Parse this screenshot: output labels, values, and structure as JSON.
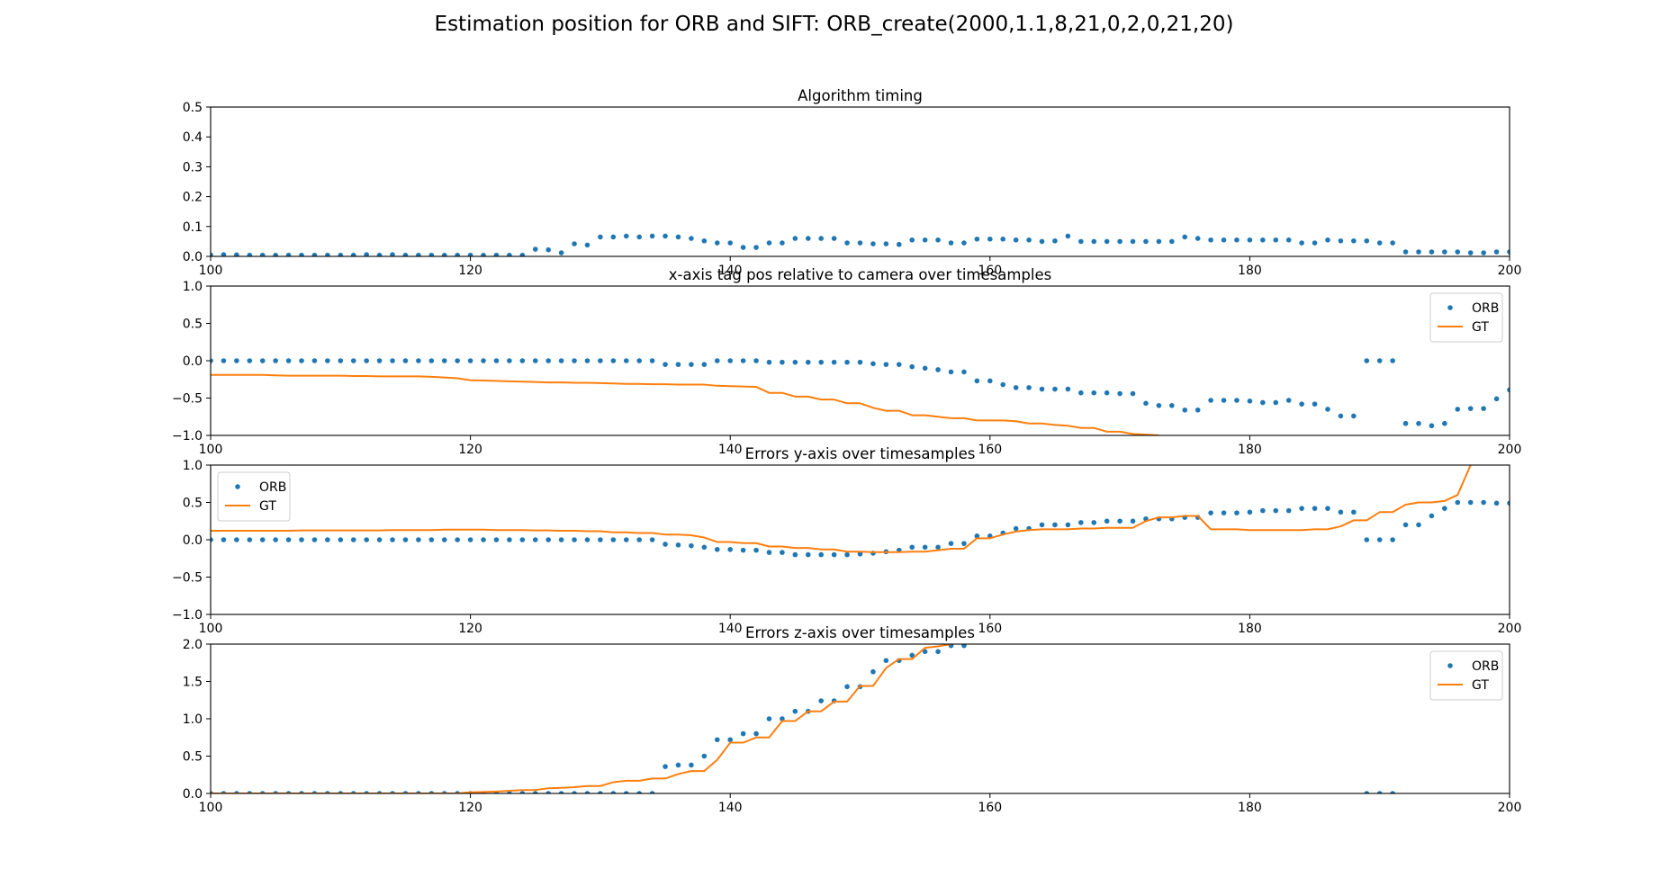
{
  "figure": {
    "suptitle": "Estimation position for ORB and SIFT: ORB_create(2000,1.1,8,21,0,2,0,21,20)"
  },
  "colors": {
    "orb": "#1f77b4",
    "gt": "#ff7f0e"
  },
  "chart_data": [
    {
      "type": "scatter",
      "title": "Algorithm timing",
      "xlim": [
        100,
        200
      ],
      "ylim": [
        0,
        0.5
      ],
      "xticks": [
        "100",
        "120",
        "140",
        "160",
        "180",
        "200"
      ],
      "yticks": [
        "0.0",
        "0.1",
        "0.2",
        "0.3",
        "0.4",
        "0.5"
      ],
      "legend": null,
      "x_start": 100,
      "series": [
        {
          "kind": "points",
          "values": [
            0.005,
            0.006,
            0.005,
            0.004,
            0.004,
            0.004,
            0.004,
            0.004,
            0.004,
            0.004,
            0.004,
            0.004,
            0.006,
            0.004,
            0.006,
            0.004,
            0.004,
            0.004,
            0.004,
            0.004,
            0.004,
            0.004,
            0.004,
            0.004,
            0.004,
            0.024,
            0.022,
            0.012,
            0.042,
            0.038,
            0.065,
            0.065,
            0.068,
            0.065,
            0.068,
            0.068,
            0.065,
            0.06,
            0.052,
            0.045,
            0.045,
            0.03,
            0.03,
            0.045,
            0.045,
            0.06,
            0.06,
            0.06,
            0.06,
            0.045,
            0.045,
            0.042,
            0.042,
            0.04,
            0.055,
            0.055,
            0.055,
            0.045,
            0.045,
            0.058,
            0.058,
            0.058,
            0.055,
            0.055,
            0.05,
            0.052,
            0.068,
            0.05,
            0.05,
            0.05,
            0.05,
            0.05,
            0.05,
            0.05,
            0.05,
            0.065,
            0.06,
            0.055,
            0.055,
            0.055,
            0.055,
            0.055,
            0.055,
            0.055,
            0.045,
            0.045,
            0.055,
            0.052,
            0.052,
            0.052,
            0.045,
            0.045,
            0.015,
            0.015,
            0.015,
            0.015,
            0.015,
            0.012,
            0.012,
            0.015,
            0.015
          ]
        }
      ]
    },
    {
      "type": "line",
      "title": "x-axis tag pos relative to camera over timesamples",
      "xlim": [
        100,
        200
      ],
      "ylim": [
        -1,
        1
      ],
      "xticks": [
        "100",
        "120",
        "140",
        "160",
        "180",
        "200"
      ],
      "yticks": [
        "−1.0",
        "−0.5",
        "0.0",
        "0.5",
        "1.0"
      ],
      "legend": "upper right",
      "x_start": 100,
      "series": [
        {
          "name": "ORB",
          "kind": "points",
          "values": [
            0,
            0,
            0,
            0,
            0,
            0,
            0,
            0,
            0,
            0,
            0,
            0,
            0,
            0,
            0,
            0,
            0,
            0,
            0,
            0,
            0,
            0,
            0,
            0,
            0,
            0,
            0,
            0,
            0,
            0,
            0,
            0,
            0,
            0,
            0,
            -0.05,
            -0.05,
            -0.05,
            -0.05,
            0,
            0,
            0,
            0,
            -0.02,
            -0.02,
            -0.02,
            -0.02,
            -0.02,
            -0.02,
            -0.02,
            -0.02,
            -0.04,
            -0.05,
            -0.05,
            -0.08,
            -0.1,
            -0.12,
            -0.15,
            -0.15,
            -0.27,
            -0.27,
            -0.32,
            -0.36,
            -0.36,
            -0.38,
            -0.38,
            -0.38,
            -0.43,
            -0.43,
            -0.43,
            -0.44,
            -0.44,
            -0.57,
            -0.6,
            -0.6,
            -0.66,
            -0.66,
            -0.53,
            -0.53,
            -0.53,
            -0.54,
            -0.56,
            -0.56,
            -0.53,
            -0.58,
            -0.58,
            -0.65,
            -0.74,
            -0.74,
            0,
            0,
            0,
            -0.84,
            -0.84,
            -0.87,
            -0.84,
            -0.65,
            -0.64,
            -0.64,
            -0.51,
            -0.39
          ]
        },
        {
          "name": "GT",
          "kind": "line",
          "values": [
            -0.19,
            -0.19,
            -0.19,
            -0.19,
            -0.19,
            -0.195,
            -0.2,
            -0.2,
            -0.2,
            -0.2,
            -0.2,
            -0.205,
            -0.205,
            -0.21,
            -0.21,
            -0.21,
            -0.21,
            -0.215,
            -0.225,
            -0.235,
            -0.26,
            -0.265,
            -0.27,
            -0.275,
            -0.28,
            -0.285,
            -0.29,
            -0.29,
            -0.295,
            -0.295,
            -0.3,
            -0.305,
            -0.31,
            -0.31,
            -0.315,
            -0.315,
            -0.32,
            -0.32,
            -0.32,
            -0.335,
            -0.34,
            -0.345,
            -0.35,
            -0.43,
            -0.43,
            -0.48,
            -0.48,
            -0.52,
            -0.52,
            -0.57,
            -0.57,
            -0.63,
            -0.67,
            -0.67,
            -0.73,
            -0.73,
            -0.75,
            -0.77,
            -0.77,
            -0.8,
            -0.8,
            -0.8,
            -0.81,
            -0.84,
            -0.84,
            -0.86,
            -0.87,
            -0.9,
            -0.9,
            -0.95,
            -0.95,
            -0.98,
            -0.99,
            -1.0
          ]
        }
      ]
    },
    {
      "type": "line",
      "title": "Errors y-axis over timesamples",
      "xlim": [
        100,
        200
      ],
      "ylim": [
        -1,
        1
      ],
      "xticks": [
        "100",
        "120",
        "140",
        "160",
        "180",
        "200"
      ],
      "yticks": [
        "−1.0",
        "−0.5",
        "0.0",
        "0.5",
        "1.0"
      ],
      "legend": "upper left",
      "x_start": 100,
      "series": [
        {
          "name": "ORB",
          "kind": "points",
          "values": [
            0,
            0,
            0,
            0,
            0,
            0,
            0,
            0,
            0,
            0,
            0,
            0,
            0,
            0,
            0,
            0,
            0,
            0,
            0,
            0,
            0,
            0,
            0,
            0,
            0,
            0,
            0,
            0,
            0,
            0,
            0,
            0,
            0,
            0,
            0,
            -0.06,
            -0.07,
            -0.08,
            -0.1,
            -0.13,
            -0.13,
            -0.14,
            -0.14,
            -0.17,
            -0.17,
            -0.2,
            -0.2,
            -0.2,
            -0.2,
            -0.2,
            -0.19,
            -0.18,
            -0.16,
            -0.14,
            -0.1,
            -0.1,
            -0.1,
            -0.05,
            -0.05,
            0.05,
            0.05,
            0.09,
            0.15,
            0.15,
            0.2,
            0.2,
            0.2,
            0.23,
            0.23,
            0.25,
            0.25,
            0.25,
            0.28,
            0.28,
            0.28,
            0.3,
            0.3,
            0.36,
            0.36,
            0.36,
            0.37,
            0.39,
            0.39,
            0.39,
            0.42,
            0.42,
            0.42,
            0.37,
            0.37,
            0,
            0,
            0,
            0.2,
            0.2,
            0.32,
            0.42,
            0.5,
            0.5,
            0.5,
            0.49,
            0.49
          ]
        },
        {
          "name": "GT",
          "kind": "line",
          "values": [
            0.12,
            0.12,
            0.12,
            0.12,
            0.12,
            0.12,
            0.12,
            0.125,
            0.125,
            0.125,
            0.125,
            0.125,
            0.125,
            0.125,
            0.13,
            0.13,
            0.13,
            0.13,
            0.135,
            0.135,
            0.135,
            0.135,
            0.13,
            0.13,
            0.13,
            0.125,
            0.125,
            0.12,
            0.12,
            0.115,
            0.115,
            0.1,
            0.1,
            0.09,
            0.09,
            0.07,
            0.07,
            0.06,
            0.03,
            -0.03,
            -0.03,
            -0.045,
            -0.045,
            -0.09,
            -0.09,
            -0.11,
            -0.11,
            -0.13,
            -0.13,
            -0.16,
            -0.16,
            -0.165,
            -0.165,
            -0.165,
            -0.16,
            -0.16,
            -0.14,
            -0.12,
            -0.12,
            0.02,
            0.02,
            0.07,
            0.11,
            0.13,
            0.14,
            0.14,
            0.14,
            0.15,
            0.15,
            0.16,
            0.16,
            0.16,
            0.25,
            0.3,
            0.3,
            0.32,
            0.32,
            0.14,
            0.14,
            0.14,
            0.13,
            0.13,
            0.13,
            0.13,
            0.13,
            0.14,
            0.14,
            0.18,
            0.26,
            0.26,
            0.37,
            0.37,
            0.47,
            0.5,
            0.5,
            0.52,
            0.6,
            1.0
          ]
        }
      ]
    },
    {
      "type": "line",
      "title": "Errors z-axis over timesamples",
      "xlim": [
        100,
        200
      ],
      "ylim": [
        0,
        2
      ],
      "xticks": [
        "100",
        "120",
        "140",
        "160",
        "180",
        "200"
      ],
      "yticks": [
        "0.0",
        "0.5",
        "1.0",
        "1.5",
        "2.0"
      ],
      "legend": "upper right",
      "x_start": 100,
      "series": [
        {
          "name": "ORB",
          "kind": "points",
          "values": [
            0,
            0,
            0,
            0,
            0,
            0,
            0,
            0,
            0,
            0,
            0,
            0,
            0,
            0,
            0,
            0,
            0,
            0,
            0,
            0,
            0,
            0,
            0,
            0,
            0,
            0,
            0,
            0,
            0,
            0,
            0,
            0,
            0,
            0,
            0,
            0.36,
            0.38,
            0.38,
            0.5,
            0.72,
            0.72,
            0.8,
            0.8,
            1.0,
            1.0,
            1.1,
            1.1,
            1.24,
            1.24,
            1.43,
            1.43,
            1.63,
            1.78,
            1.78,
            1.85,
            1.9,
            1.9,
            1.98,
            1.98,
            null,
            null,
            null,
            null,
            null,
            null,
            null,
            null,
            null,
            null,
            null,
            null,
            null,
            null,
            null,
            null,
            null,
            null,
            null,
            null,
            null,
            null,
            null,
            null,
            null,
            null,
            null,
            null,
            null,
            null,
            0,
            0,
            0
          ]
        },
        {
          "name": "GT",
          "kind": "line",
          "values": [
            0,
            0,
            0,
            0,
            0,
            0,
            0,
            0,
            0,
            0,
            0,
            0,
            0,
            0,
            0,
            0,
            0,
            0,
            0,
            0,
            0.015,
            0.02,
            0.025,
            0.035,
            0.045,
            0.045,
            0.07,
            0.075,
            0.085,
            0.1,
            0.1,
            0.15,
            0.17,
            0.17,
            0.2,
            0.2,
            0.26,
            0.3,
            0.3,
            0.45,
            0.68,
            0.68,
            0.75,
            0.75,
            0.97,
            0.97,
            1.1,
            1.1,
            1.23,
            1.23,
            1.44,
            1.44,
            1.68,
            1.8,
            1.8,
            1.95,
            1.97,
            2.0
          ]
        }
      ]
    }
  ]
}
